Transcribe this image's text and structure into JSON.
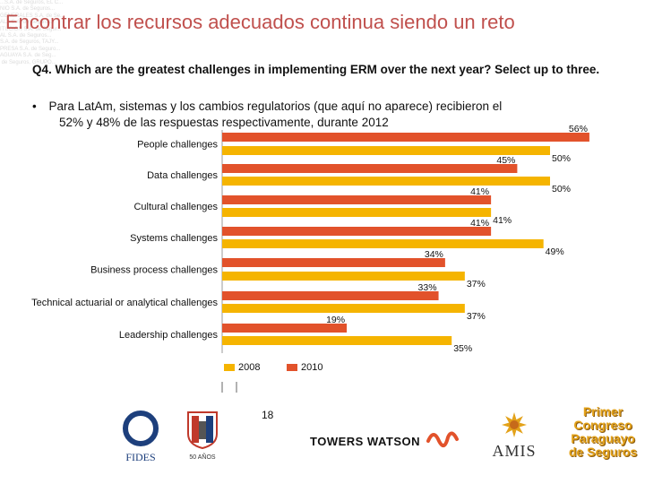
{
  "slide": {
    "title": "Encontrar los recursos adecuados continua siendo un reto",
    "question": "Q4. Which are the greatest challenges in implementing ERM over the next year? Select up to three.",
    "bullet_symbol": "•",
    "bullet_line1": "Para LatAm, sistemas y los cambios regulatorios (que aquí no aparece) recibieron el",
    "bullet_line2": "52% y 48% de las respuestas respectivamente, durante 2012",
    "page_number": "18",
    "background_watermark": "...S.A. de Seguros, EL C...\nNIO S.A. de Seguros...\nGENERALES S.A. de Se...\nALA S.A. de Seguros...\nITUCION S.A. de Segur...\nAL S.A. de Seguros...\nS.A. de Seguros, TAJY...\nPRESA S.A. de Seguro...\nAGUAYA S.A. de Seg...\n de Seguros, GRUPO..."
  },
  "logos": {
    "fides": "FIDES",
    "anos": "50 AÑOS",
    "towers_watson": "TOWERS WATSON",
    "amis": "AMIS",
    "congreso_line1": "Primer",
    "congreso_line2": "Congreso",
    "congreso_line3": "Paraguayo",
    "congreso_line4": "de Seguros"
  },
  "colors": {
    "title": "#c0504d",
    "series_2008": "#f5b400",
    "series_2010": "#e2522b",
    "congreso": "#e3a21a",
    "fides_blue": "#1d3f7c",
    "towers": "#111111"
  },
  "chart_data": {
    "type": "bar",
    "orientation": "horizontal",
    "categories": [
      "People challenges",
      "Data challenges",
      "Cultural challenges",
      "Systems challenges",
      "Business process challenges",
      "Technical actuarial or analytical challenges",
      "Leadership challenges"
    ],
    "series": [
      {
        "name": "2008",
        "values": [
          50,
          50,
          41,
          49,
          37,
          37,
          35
        ],
        "labels": [
          "50%",
          "50%",
          "41%",
          "49%",
          "37%",
          "37%",
          "35%"
        ]
      },
      {
        "name": "2010",
        "values": [
          56,
          45,
          41,
          41,
          34,
          33,
          19
        ],
        "labels": [
          "56%",
          "45%",
          "41%",
          "41%",
          "34%",
          "33%",
          "19%"
        ]
      }
    ],
    "xlim": [
      0,
      60
    ],
    "legend": "bottom",
    "grid": false,
    "title": "",
    "xlabel": "",
    "ylabel": ""
  }
}
